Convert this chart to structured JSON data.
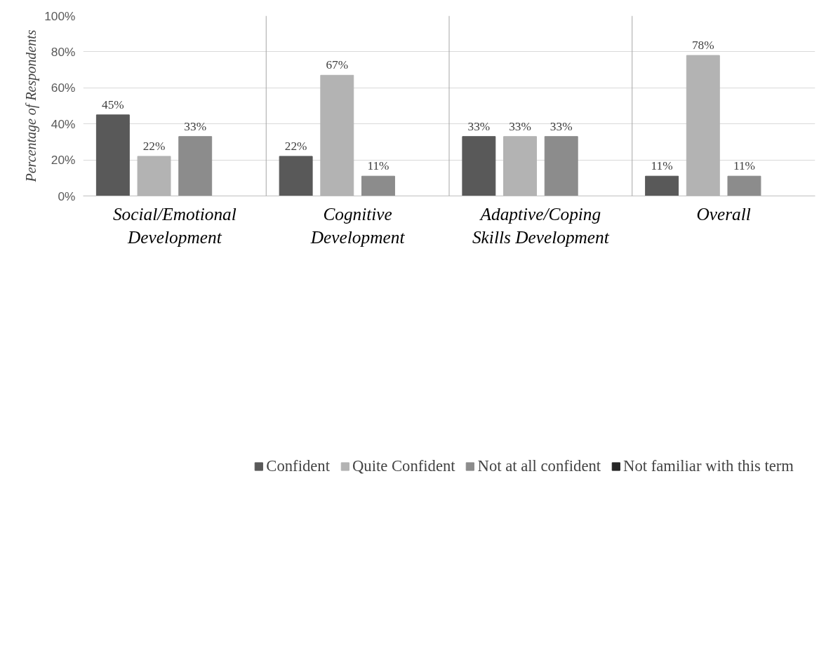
{
  "chart_data": {
    "type": "bar",
    "ylabel": "Percentage of Respondents",
    "categories": [
      "Social/Emotional\nDevelopment",
      "Cognitive\nDevelopment",
      "Adaptive/Coping\nSkills Development",
      "Overall"
    ],
    "series": [
      {
        "name": "Confident",
        "color": "#595959",
        "values": [
          45,
          22,
          33,
          11
        ],
        "value_labels": [
          "45%",
          "22%",
          "33%",
          "11%"
        ]
      },
      {
        "name": "Quite Confident",
        "color": "#b3b3b3",
        "values": [
          22,
          67,
          33,
          78
        ],
        "value_labels": [
          "22%",
          "67%",
          "33%",
          "78%"
        ]
      },
      {
        "name": "Not at all confident",
        "color": "#8c8c8c",
        "values": [
          33,
          11,
          33,
          11
        ],
        "value_labels": [
          "33%",
          "11%",
          "33%",
          "11%"
        ]
      },
      {
        "name": "Not familiar with this term",
        "color": "#262626",
        "values": [
          null,
          null,
          null,
          null
        ]
      }
    ],
    "ylim": [
      0,
      100
    ],
    "yticks": [
      {
        "value": 0,
        "label": "0%"
      },
      {
        "value": 20,
        "label": "20%"
      },
      {
        "value": 40,
        "label": "40%"
      },
      {
        "value": 60,
        "label": "60%"
      },
      {
        "value": 80,
        "label": "80%"
      },
      {
        "value": 100,
        "label": "100%"
      }
    ],
    "grid": true,
    "legend": "bottom"
  }
}
